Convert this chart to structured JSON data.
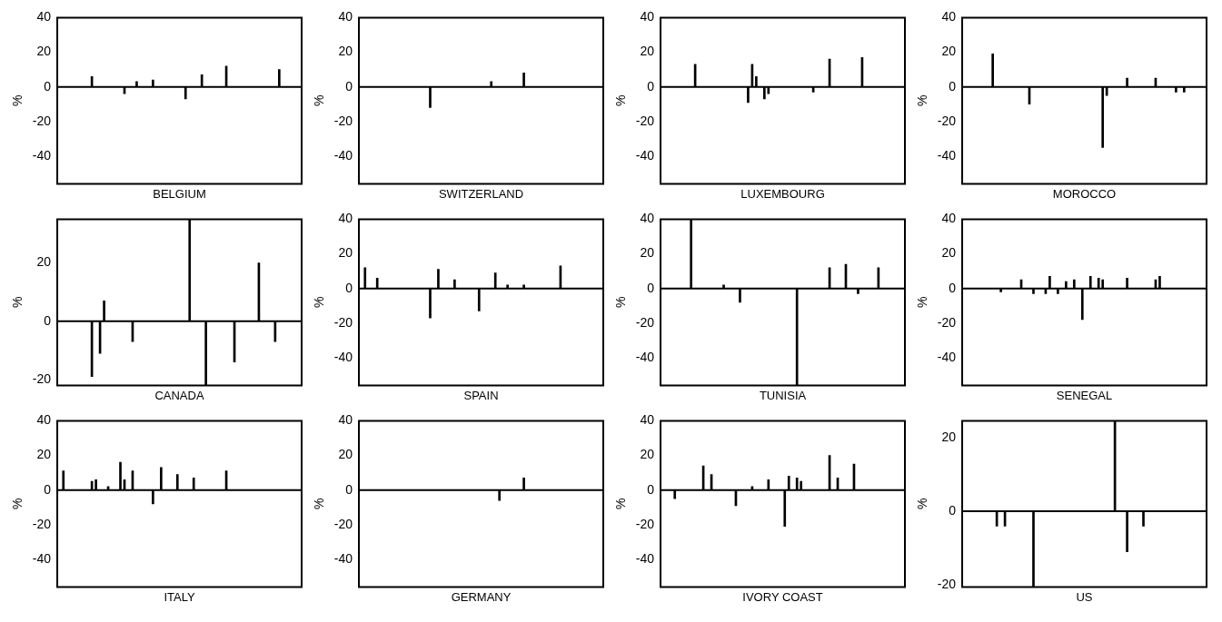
{
  "chart_data": [
    {
      "type": "bar",
      "xlabel": "BELGIUM",
      "ylabel": "%",
      "color": "#000000",
      "ylim": [
        -56,
        40
      ],
      "yticks": [
        -40,
        -20,
        0,
        20,
        40
      ],
      "tick_labels": "y",
      "categories": [
        null,
        null,
        null,
        null,
        null,
        null,
        null,
        null,
        null,
        null,
        null,
        null,
        null,
        null,
        null,
        null,
        null,
        null,
        null,
        null,
        null,
        null,
        null,
        null,
        null,
        null,
        null,
        null,
        null,
        null,
        null,
        null,
        null,
        null,
        null,
        null,
        null,
        null,
        null,
        null,
        null,
        null,
        null,
        null,
        null,
        null,
        null,
        null,
        null,
        null,
        null,
        null,
        null,
        null,
        null,
        null,
        null,
        null,
        null,
        null
      ],
      "values": [
        null,
        null,
        null,
        null,
        null,
        null,
        null,
        null,
        6,
        null,
        null,
        null,
        null,
        null,
        null,
        null,
        -4,
        null,
        null,
        3,
        null,
        null,
        null,
        4,
        null,
        null,
        null,
        null,
        null,
        null,
        null,
        -7,
        null,
        null,
        null,
        7,
        null,
        null,
        null,
        null,
        null,
        12,
        null,
        null,
        null,
        null,
        null,
        null,
        null,
        null,
        null,
        null,
        null,
        null,
        10,
        null,
        null,
        null,
        null,
        null
      ]
    },
    {
      "type": "bar",
      "xlabel": "SWITZERLAND",
      "ylabel": "%",
      "color": "#000000",
      "ylim": [
        -56,
        40
      ],
      "yticks": [
        -40,
        -20,
        0,
        20,
        40
      ],
      "tick_labels": "y",
      "categories": [
        null,
        null,
        null,
        null,
        null,
        null,
        null,
        null,
        null,
        null,
        null,
        null,
        null,
        null,
        null,
        null,
        null,
        null,
        null,
        null,
        null,
        null,
        null,
        null,
        null,
        null,
        null,
        null,
        null,
        null,
        null,
        null,
        null,
        null,
        null,
        null,
        null,
        null,
        null,
        null,
        null,
        null,
        null,
        null,
        null,
        null,
        null,
        null,
        null,
        null,
        null,
        null,
        null,
        null,
        null,
        null,
        null,
        null,
        null,
        null
      ],
      "values": [
        null,
        null,
        null,
        null,
        null,
        null,
        null,
        null,
        null,
        null,
        null,
        null,
        null,
        null,
        null,
        null,
        null,
        -12,
        null,
        null,
        null,
        null,
        null,
        null,
        null,
        null,
        null,
        null,
        null,
        null,
        null,
        null,
        3,
        null,
        null,
        null,
        null,
        null,
        null,
        null,
        8,
        null,
        null,
        null,
        null,
        null,
        null,
        null,
        null,
        null,
        null,
        null,
        null,
        null,
        null,
        null,
        null,
        null,
        null,
        null
      ]
    },
    {
      "type": "bar",
      "xlabel": "LUXEMBOURG",
      "ylabel": "%",
      "color": "#000000",
      "ylim": [
        -56,
        40
      ],
      "yticks": [
        -40,
        -20,
        0,
        20,
        40
      ],
      "tick_labels": "y",
      "categories": [
        null,
        null,
        null,
        null,
        null,
        null,
        null,
        null,
        null,
        null,
        null,
        null,
        null,
        null,
        null,
        null,
        null,
        null,
        null,
        null,
        null,
        null,
        null,
        null,
        null,
        null,
        null,
        null,
        null,
        null,
        null,
        null,
        null,
        null,
        null,
        null,
        null,
        null,
        null,
        null,
        null,
        null,
        null,
        null,
        null,
        null,
        null,
        null,
        null,
        null,
        null,
        null,
        null,
        null,
        null,
        null,
        null,
        null,
        null,
        null
      ],
      "values": [
        null,
        null,
        null,
        null,
        null,
        null,
        null,
        null,
        13,
        null,
        null,
        null,
        null,
        null,
        null,
        null,
        null,
        null,
        null,
        null,
        null,
        -9,
        13,
        6,
        null,
        -7,
        -4,
        null,
        null,
        null,
        null,
        null,
        null,
        null,
        null,
        null,
        null,
        -3,
        null,
        null,
        null,
        16,
        null,
        null,
        null,
        null,
        null,
        null,
        null,
        17,
        null,
        null,
        null,
        null,
        null,
        null,
        null,
        null,
        null,
        null
      ]
    },
    {
      "type": "bar",
      "xlabel": "MOROCCO",
      "ylabel": "%",
      "color": "#000000",
      "ylim": [
        -56,
        40
      ],
      "yticks": [
        -40,
        -20,
        0,
        20,
        40
      ],
      "tick_labels": "y",
      "categories": [
        null,
        null,
        null,
        null,
        null,
        null,
        null,
        null,
        null,
        null,
        null,
        null,
        null,
        null,
        null,
        null,
        null,
        null,
        null,
        null,
        null,
        null,
        null,
        null,
        null,
        null,
        null,
        null,
        null,
        null,
        null,
        null,
        null,
        null,
        null,
        null,
        null,
        null,
        null,
        null,
        null,
        null,
        null,
        null,
        null,
        null,
        null,
        null,
        null,
        null,
        null,
        null,
        null,
        null,
        null,
        null,
        null,
        null,
        null,
        null
      ],
      "values": [
        null,
        null,
        null,
        null,
        null,
        null,
        null,
        19,
        null,
        null,
        null,
        null,
        null,
        null,
        null,
        null,
        -10,
        null,
        null,
        null,
        null,
        null,
        null,
        null,
        null,
        null,
        null,
        null,
        null,
        null,
        null,
        null,
        null,
        null,
        -35,
        -5,
        null,
        null,
        null,
        null,
        5,
        null,
        null,
        null,
        null,
        null,
        null,
        5,
        null,
        null,
        null,
        null,
        -3,
        null,
        -3,
        null,
        null,
        null,
        null,
        null
      ]
    },
    {
      "type": "bar",
      "xlabel": "CANADA",
      "ylabel": "%",
      "color": "#000000",
      "ylim": [
        -22,
        35
      ],
      "yticks": [
        -20,
        0,
        20
      ],
      "tick_labels": "y",
      "categories": [
        null,
        null,
        null,
        null,
        null,
        null,
        null,
        null,
        null,
        null,
        null,
        null,
        null,
        null,
        null,
        null,
        null,
        null,
        null,
        null,
        null,
        null,
        null,
        null,
        null,
        null,
        null,
        null,
        null,
        null,
        null,
        null,
        null,
        null,
        null,
        null,
        null,
        null,
        null,
        null,
        null,
        null,
        null,
        null,
        null,
        null,
        null,
        null,
        null,
        null,
        null,
        null,
        null,
        null,
        null,
        null,
        null,
        null,
        null,
        null
      ],
      "values": [
        null,
        null,
        null,
        null,
        null,
        null,
        null,
        null,
        -19,
        null,
        -11,
        7,
        null,
        null,
        null,
        null,
        null,
        null,
        -7,
        null,
        null,
        null,
        null,
        null,
        null,
        null,
        null,
        null,
        null,
        null,
        null,
        null,
        35,
        null,
        null,
        null,
        -22,
        null,
        null,
        null,
        null,
        null,
        null,
        -14,
        null,
        null,
        null,
        null,
        null,
        20,
        null,
        null,
        null,
        -7,
        null,
        null,
        null,
        null,
        null,
        null
      ]
    },
    {
      "type": "bar",
      "xlabel": "SPAIN",
      "ylabel": "%",
      "color": "#000000",
      "ylim": [
        -56,
        40
      ],
      "yticks": [
        -40,
        -20,
        0,
        20,
        40
      ],
      "tick_labels": "y",
      "categories": [
        null,
        null,
        null,
        null,
        null,
        null,
        null,
        null,
        null,
        null,
        null,
        null,
        null,
        null,
        null,
        null,
        null,
        null,
        null,
        null,
        null,
        null,
        null,
        null,
        null,
        null,
        null,
        null,
        null,
        null,
        null,
        null,
        null,
        null,
        null,
        null,
        null,
        null,
        null,
        null,
        null,
        null,
        null,
        null,
        null,
        null,
        null,
        null,
        null,
        null,
        null,
        null,
        null,
        null,
        null,
        null,
        null,
        null,
        null,
        null
      ],
      "values": [
        null,
        12,
        null,
        null,
        6,
        null,
        null,
        null,
        null,
        null,
        null,
        null,
        null,
        null,
        null,
        null,
        null,
        -17,
        null,
        11,
        null,
        null,
        null,
        5,
        null,
        null,
        null,
        null,
        null,
        -13,
        null,
        null,
        null,
        9,
        null,
        null,
        2,
        null,
        null,
        null,
        2,
        null,
        null,
        null,
        null,
        null,
        null,
        null,
        null,
        13,
        null,
        null,
        null,
        null,
        null,
        null,
        null,
        null,
        null,
        null
      ]
    },
    {
      "type": "bar",
      "xlabel": "TUNISIA",
      "ylabel": "%",
      "color": "#000000",
      "ylim": [
        -56,
        40
      ],
      "yticks": [
        -40,
        -20,
        0,
        20,
        40
      ],
      "tick_labels": "y",
      "categories": [
        null,
        null,
        null,
        null,
        null,
        null,
        null,
        null,
        null,
        null,
        null,
        null,
        null,
        null,
        null,
        null,
        null,
        null,
        null,
        null,
        null,
        null,
        null,
        null,
        null,
        null,
        null,
        null,
        null,
        null,
        null,
        null,
        null,
        null,
        null,
        null,
        null,
        null,
        null,
        null,
        null,
        null,
        null,
        null,
        null,
        null,
        null,
        null,
        null,
        null,
        null,
        null,
        null,
        null,
        null,
        null,
        null,
        null,
        null,
        null
      ],
      "values": [
        null,
        null,
        null,
        null,
        null,
        null,
        null,
        40,
        null,
        null,
        null,
        null,
        null,
        null,
        null,
        2,
        null,
        null,
        null,
        -8,
        null,
        null,
        null,
        null,
        null,
        null,
        null,
        null,
        null,
        null,
        null,
        null,
        null,
        -56,
        null,
        null,
        null,
        null,
        null,
        null,
        null,
        12,
        null,
        null,
        null,
        14,
        null,
        null,
        -3,
        null,
        null,
        null,
        null,
        12,
        null,
        null,
        null,
        null,
        null,
        null
      ]
    },
    {
      "type": "bar",
      "xlabel": "SENEGAL",
      "ylabel": "%",
      "color": "#000000",
      "ylim": [
        -56,
        40
      ],
      "yticks": [
        -40,
        -20,
        0,
        20,
        40
      ],
      "tick_labels": "y",
      "categories": [
        null,
        null,
        null,
        null,
        null,
        null,
        null,
        null,
        null,
        null,
        null,
        null,
        null,
        null,
        null,
        null,
        null,
        null,
        null,
        null,
        null,
        null,
        null,
        null,
        null,
        null,
        null,
        null,
        null,
        null,
        null,
        null,
        null,
        null,
        null,
        null,
        null,
        null,
        null,
        null,
        null,
        null,
        null,
        null,
        null,
        null,
        null,
        null,
        null,
        null,
        null,
        null,
        null,
        null,
        null,
        null,
        null,
        null,
        null,
        null
      ],
      "values": [
        null,
        null,
        null,
        null,
        null,
        null,
        null,
        null,
        null,
        -2,
        null,
        null,
        null,
        null,
        5,
        null,
        null,
        -3,
        null,
        null,
        -3,
        7,
        null,
        -3,
        null,
        4,
        null,
        5,
        null,
        -18,
        null,
        7,
        null,
        6,
        5,
        null,
        null,
        null,
        null,
        null,
        6,
        null,
        null,
        null,
        null,
        null,
        null,
        5,
        7,
        null,
        null,
        null,
        null,
        null,
        null,
        null,
        null,
        null,
        null,
        null
      ]
    },
    {
      "type": "bar",
      "xlabel": "ITALY",
      "ylabel": "%",
      "color": "#000000",
      "ylim": [
        -56,
        40
      ],
      "yticks": [
        -40,
        -20,
        0,
        20,
        40
      ],
      "tick_labels": "y",
      "categories": [
        null,
        null,
        null,
        null,
        null,
        null,
        null,
        null,
        null,
        null,
        null,
        null,
        null,
        null,
        null,
        null,
        null,
        null,
        null,
        null,
        null,
        null,
        null,
        null,
        null,
        null,
        null,
        null,
        null,
        null,
        null,
        null,
        null,
        null,
        null,
        null,
        null,
        null,
        null,
        null,
        null,
        null,
        null,
        null,
        null,
        null,
        null,
        null,
        null,
        null,
        null,
        null,
        null,
        null,
        null,
        null,
        null,
        null,
        null,
        null
      ],
      "values": [
        null,
        11,
        null,
        null,
        null,
        null,
        null,
        null,
        5,
        6,
        null,
        null,
        2,
        null,
        null,
        16,
        6,
        null,
        11,
        null,
        null,
        null,
        null,
        -8,
        null,
        13,
        null,
        null,
        null,
        9,
        null,
        null,
        null,
        7,
        null,
        null,
        null,
        null,
        null,
        null,
        null,
        11,
        null,
        null,
        null,
        null,
        null,
        null,
        null,
        null,
        null,
        null,
        null,
        null,
        null,
        null,
        null,
        null,
        null,
        null
      ]
    },
    {
      "type": "bar",
      "xlabel": "GERMANY",
      "ylabel": "%",
      "color": "#000000",
      "ylim": [
        -56,
        40
      ],
      "yticks": [
        -40,
        -20,
        0,
        20,
        40
      ],
      "tick_labels": "y",
      "categories": [
        null,
        null,
        null,
        null,
        null,
        null,
        null,
        null,
        null,
        null,
        null,
        null,
        null,
        null,
        null,
        null,
        null,
        null,
        null,
        null,
        null,
        null,
        null,
        null,
        null,
        null,
        null,
        null,
        null,
        null,
        null,
        null,
        null,
        null,
        null,
        null,
        null,
        null,
        null,
        null,
        null,
        null,
        null,
        null,
        null,
        null,
        null,
        null,
        null,
        null,
        null,
        null,
        null,
        null,
        null,
        null,
        null,
        null,
        null,
        null
      ],
      "values": [
        null,
        null,
        null,
        null,
        null,
        null,
        null,
        null,
        null,
        null,
        null,
        null,
        null,
        null,
        null,
        null,
        null,
        null,
        null,
        null,
        null,
        null,
        null,
        null,
        null,
        null,
        null,
        null,
        null,
        null,
        null,
        null,
        null,
        null,
        -6,
        null,
        null,
        null,
        null,
        null,
        7,
        null,
        null,
        null,
        null,
        null,
        null,
        null,
        null,
        null,
        null,
        null,
        null,
        null,
        null,
        null,
        null,
        null,
        null,
        null
      ]
    },
    {
      "type": "bar",
      "xlabel": "IVORY COAST",
      "ylabel": "%",
      "color": "#000000",
      "ylim": [
        -56,
        40
      ],
      "yticks": [
        -40,
        -20,
        0,
        20,
        40
      ],
      "tick_labels": "y",
      "categories": [
        null,
        null,
        null,
        null,
        null,
        null,
        null,
        null,
        null,
        null,
        null,
        null,
        null,
        null,
        null,
        null,
        null,
        null,
        null,
        null,
        null,
        null,
        null,
        null,
        null,
        null,
        null,
        null,
        null,
        null,
        null,
        null,
        null,
        null,
        null,
        null,
        null,
        null,
        null,
        null,
        null,
        null,
        null,
        null,
        null,
        null,
        null,
        null,
        null,
        null,
        null,
        null,
        null,
        null,
        null,
        null,
        null,
        null,
        null,
        null
      ],
      "values": [
        null,
        null,
        null,
        -5,
        null,
        null,
        null,
        null,
        null,
        null,
        14,
        null,
        9,
        null,
        null,
        null,
        null,
        null,
        -9,
        null,
        null,
        null,
        2,
        null,
        null,
        null,
        6,
        null,
        null,
        null,
        -21,
        8,
        null,
        7,
        5,
        null,
        null,
        null,
        null,
        null,
        null,
        20,
        null,
        7,
        null,
        null,
        null,
        15,
        null,
        null,
        null,
        null,
        null,
        null,
        null,
        null,
        null,
        null,
        null,
        null
      ]
    },
    {
      "type": "bar",
      "xlabel": "US",
      "ylabel": "%",
      "color": "#000000",
      "ylim": [
        -20.5,
        24.5
      ],
      "yticks": [
        -20,
        0,
        20
      ],
      "tick_labels": "y",
      "categories": [
        null,
        null,
        null,
        null,
        null,
        null,
        null,
        null,
        null,
        null,
        null,
        null,
        null,
        null,
        null,
        null,
        null,
        null,
        null,
        null,
        null,
        null,
        null,
        null,
        null,
        null,
        null,
        null,
        null,
        null,
        null,
        null,
        null,
        null,
        null,
        null,
        null,
        null,
        null,
        null,
        null,
        null,
        null,
        null,
        null,
        null,
        null,
        null,
        null,
        null,
        null,
        null,
        null,
        null,
        null,
        null,
        null,
        null,
        null,
        null
      ],
      "values": [
        null,
        null,
        null,
        null,
        null,
        null,
        null,
        null,
        -4,
        null,
        -4,
        null,
        null,
        null,
        null,
        null,
        null,
        -20.5,
        null,
        null,
        null,
        null,
        null,
        null,
        null,
        null,
        null,
        null,
        null,
        null,
        null,
        null,
        null,
        null,
        null,
        null,
        null,
        24.5,
        null,
        null,
        -11,
        null,
        null,
        null,
        -4,
        null,
        null,
        null,
        null,
        null,
        null,
        null,
        null,
        null,
        null,
        null,
        null,
        null,
        null,
        null
      ]
    }
  ]
}
